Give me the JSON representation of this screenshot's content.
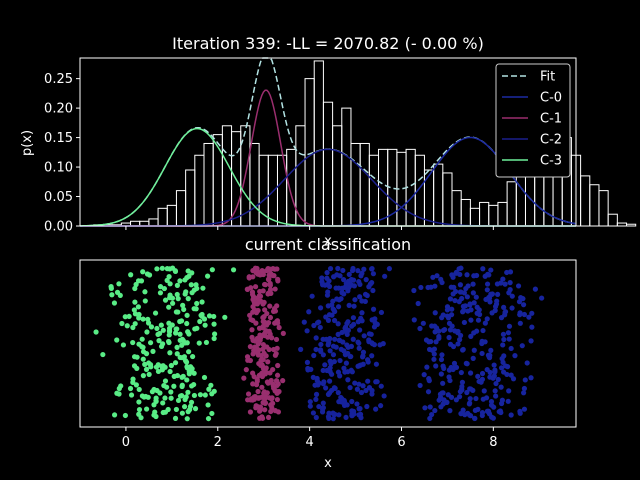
{
  "figure": {
    "background": "#000000",
    "foreground": "#ffffff"
  },
  "chart_data": [
    {
      "type": "histogram",
      "title": "Iteration 339: -LL = 2070.82 (- 0.00 %)",
      "xlabel": "x",
      "ylabel": "p(x)",
      "xlim": [
        -1.0,
        9.8
      ],
      "ylim": [
        0.0,
        0.285
      ],
      "yticks": [
        "0.00",
        "0.05",
        "0.10",
        "0.15",
        "0.20",
        "0.25"
      ],
      "legend_position": "top-right",
      "histogram": {
        "bin_start": -0.7,
        "bin_width": 0.2,
        "densities": [
          0.002,
          0.002,
          0.002,
          0.005,
          0.008,
          0.008,
          0.012,
          0.03,
          0.035,
          0.06,
          0.095,
          0.12,
          0.14,
          0.155,
          0.17,
          0.16,
          0.17,
          0.14,
          0.12,
          0.12,
          0.12,
          0.13,
          0.17,
          0.25,
          0.28,
          0.21,
          0.17,
          0.2,
          0.14,
          0.14,
          0.12,
          0.13,
          0.13,
          0.125,
          0.13,
          0.12,
          0.095,
          0.105,
          0.09,
          0.06,
          0.045,
          0.03,
          0.04,
          0.035,
          0.04,
          0.075,
          0.105,
          0.12,
          0.135,
          0.14,
          0.125,
          0.15,
          0.12,
          0.085,
          0.07,
          0.06,
          0.02,
          0.005,
          0.003
        ],
        "color": "#ffffff"
      },
      "series": [
        {
          "name": "Fit",
          "style": "dashed",
          "color": "#b2e3e3",
          "component_sum": true
        },
        {
          "name": "C-0",
          "style": "solid",
          "color": "#1c2aa2",
          "mu": 7.5,
          "sigma": 0.85,
          "weight": 0.32
        },
        {
          "name": "C-1",
          "style": "solid",
          "color": "#9a2e6e",
          "mu": 3.05,
          "sigma": 0.32,
          "weight": 0.185
        },
        {
          "name": "C-2",
          "style": "solid",
          "color": "#1a1f8c",
          "mu": 4.4,
          "sigma": 0.95,
          "weight": 0.31
        },
        {
          "name": "C-3",
          "style": "solid",
          "color": "#6ef09a",
          "mu": 1.55,
          "sigma": 0.7,
          "weight": 0.29
        }
      ]
    },
    {
      "type": "scatter",
      "title": "current classification",
      "xlabel": "x",
      "xlim": [
        -1.0,
        9.8
      ],
      "xticks": [
        "0",
        "2",
        "4",
        "6",
        "8"
      ],
      "tick_values": [
        0,
        2,
        4,
        6,
        8
      ],
      "groups": [
        {
          "name": "C-3",
          "color": "#59ec86",
          "range": [
            -0.7,
            2.5
          ],
          "count": 260
        },
        {
          "name": "C-1",
          "color": "#992f6f",
          "range": [
            2.5,
            3.5
          ],
          "count": 230
        },
        {
          "name": "C-2",
          "color": "#16229c",
          "range": [
            3.5,
            5.9
          ],
          "count": 270
        },
        {
          "name": "C-0",
          "color": "#17249e",
          "range": [
            5.9,
            9.3
          ],
          "count": 300
        }
      ]
    }
  ]
}
